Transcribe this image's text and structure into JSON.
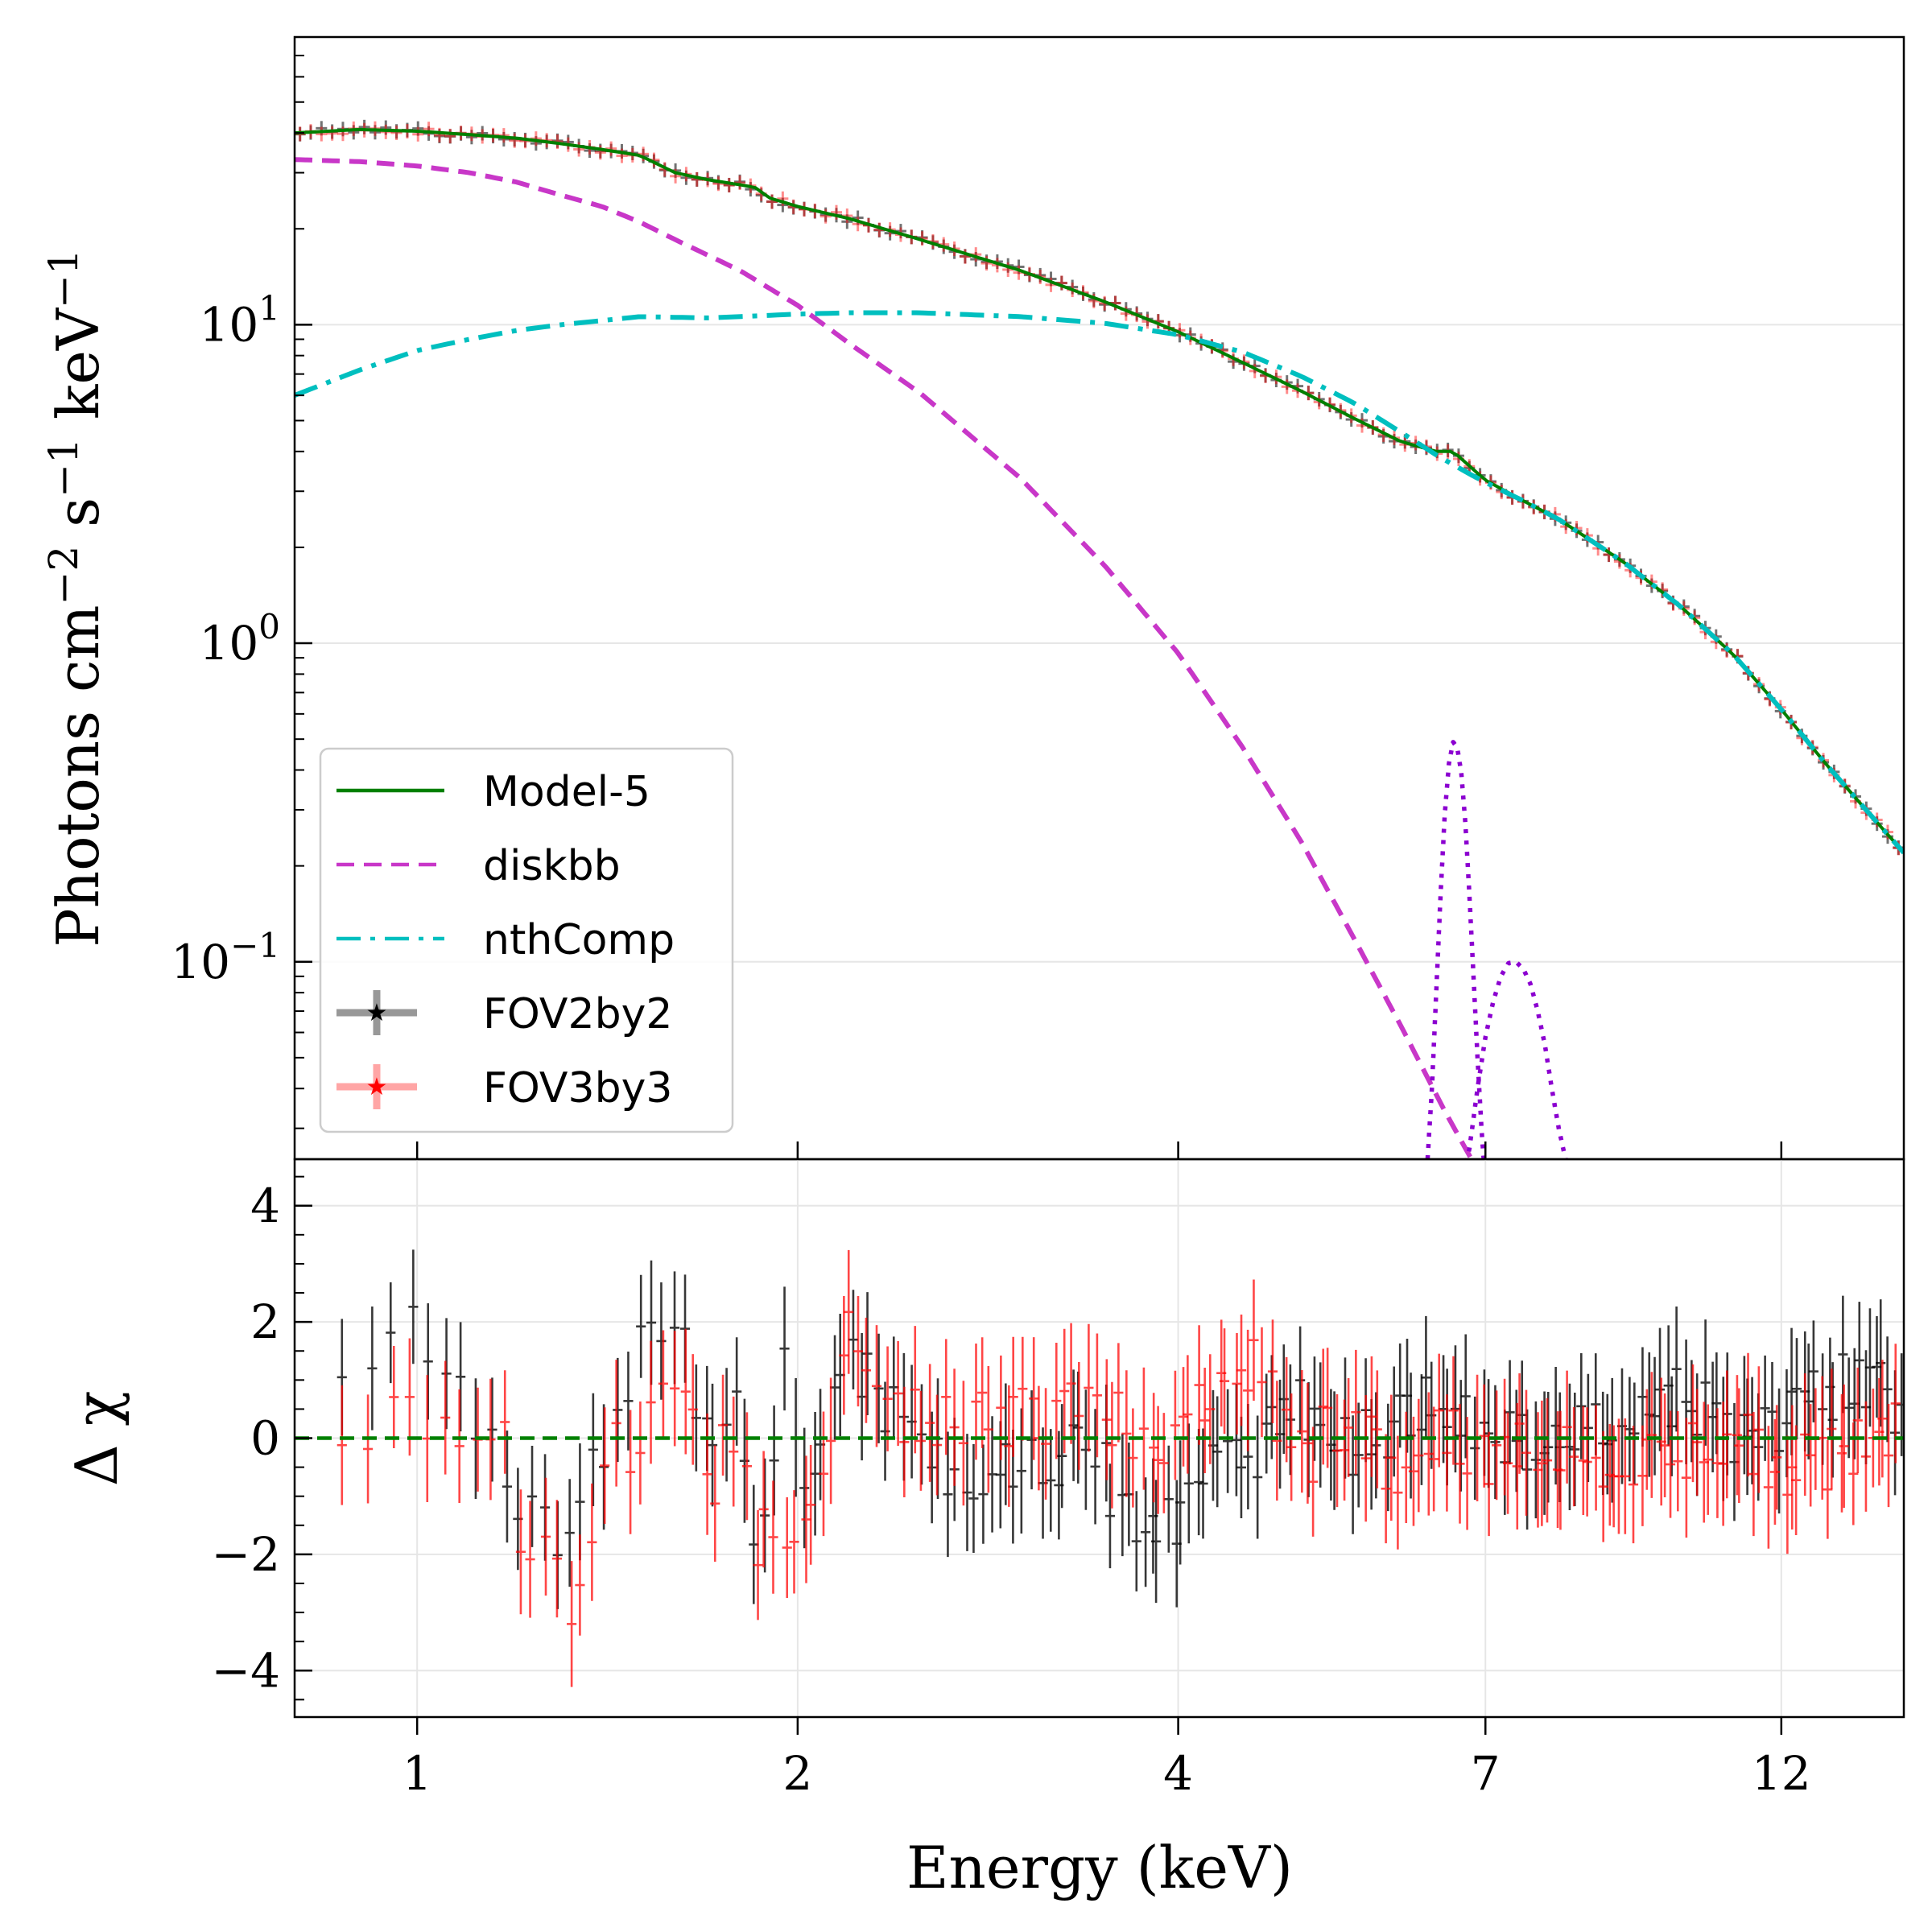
{
  "chart_data": [
    {
      "type": "line",
      "panel": "spectrum",
      "ylabel": "Photons cm^-2 s^-1 keV^-1",
      "yscale": "log",
      "xscale": "log",
      "xlim": [
        0.8,
        15
      ],
      "ylim": [
        0.024,
        80
      ],
      "yticks": [
        0.1,
        1,
        10
      ],
      "ytick_labels": [
        {
          "base": "10",
          "exp": "−1"
        },
        {
          "base": "10",
          "exp": "0"
        },
        {
          "base": "10",
          "exp": "1"
        }
      ],
      "grid": true,
      "legend_position": "lower-left",
      "legend": [
        {
          "label": "Model-5",
          "style": "solid",
          "color": "#008000"
        },
        {
          "label": "diskbb",
          "style": "dashed",
          "color": "#c837c8"
        },
        {
          "label": "nthComp",
          "style": "dashdot",
          "color": "#00bfbf"
        },
        {
          "label": "FOV2by2",
          "style": "errorbar",
          "color": "#000000"
        },
        {
          "label": "FOV3by3",
          "style": "errorbar",
          "color": "#ff0000"
        }
      ],
      "series": [
        {
          "name": "Model-5",
          "color": "#008000",
          "x": [
            0.8,
            0.9,
            1.0,
            1.1,
            1.2,
            1.3,
            1.4,
            1.5,
            1.6,
            1.7,
            1.8,
            1.85,
            1.9,
            2.0,
            2.2,
            2.5,
            3.0,
            3.5,
            4.0,
            4.5,
            5.0,
            5.5,
            6.0,
            6.4,
            6.6,
            6.8,
            7.0,
            7.5,
            8.0,
            9.0,
            10.0,
            11.0,
            12.0,
            13.0,
            14.0,
            15.0
          ],
          "y": [
            40,
            41,
            40.5,
            39.5,
            38.5,
            37,
            35.5,
            34,
            30,
            28.5,
            27.5,
            27,
            25,
            23.5,
            21.5,
            18.5,
            14.8,
            11.8,
            9.5,
            7.6,
            6.2,
            5.1,
            4.3,
            4.0,
            4.0,
            3.6,
            3.25,
            2.8,
            2.45,
            1.8,
            1.3,
            0.92,
            0.62,
            0.42,
            0.3,
            0.22
          ]
        },
        {
          "name": "diskbb",
          "color": "#c837c8",
          "x": [
            0.8,
            0.9,
            1.0,
            1.1,
            1.2,
            1.3,
            1.4,
            1.5,
            1.6,
            1.8,
            2.0,
            2.2,
            2.5,
            3.0,
            3.5,
            4.0,
            4.5,
            5.0,
            5.5,
            6.0,
            6.5,
            7.0
          ],
          "y": [
            33,
            32.5,
            31.5,
            30,
            28,
            25.5,
            23.5,
            21,
            18.5,
            14.8,
            11.5,
            8.7,
            6.1,
            3.3,
            1.75,
            0.93,
            0.47,
            0.24,
            0.12,
            0.063,
            0.034,
            0.02
          ]
        },
        {
          "name": "nthComp",
          "color": "#00bfbf",
          "x": [
            0.8,
            0.9,
            1.0,
            1.1,
            1.2,
            1.3,
            1.4,
            1.5,
            1.7,
            1.9,
            2.0,
            2.2,
            2.5,
            3.0,
            3.5,
            4.0,
            4.5,
            5.0,
            5.5,
            6.0,
            6.4,
            6.8,
            7.0,
            7.5,
            8.0,
            9.0,
            10.0,
            11.0,
            12.0,
            13.0,
            14.0,
            15.0
          ],
          "y": [
            6.0,
            7.2,
            8.3,
            9.0,
            9.6,
            10.0,
            10.3,
            10.6,
            10.5,
            10.7,
            10.8,
            10.9,
            10.9,
            10.6,
            10.1,
            9.3,
            8.2,
            6.9,
            5.7,
            4.6,
            3.9,
            3.4,
            3.2,
            2.8,
            2.45,
            1.8,
            1.3,
            0.92,
            0.62,
            0.42,
            0.3,
            0.22
          ]
        },
        {
          "name": "gaussian-1",
          "color": "#8b00d0",
          "style": "dotted",
          "x": [
            6.3,
            6.35,
            6.4,
            6.45,
            6.5,
            6.55,
            6.6,
            6.65,
            6.7,
            6.75,
            6.8,
            6.85,
            6.9,
            6.95,
            7.0
          ],
          "y": [
            0.024,
            0.04,
            0.08,
            0.16,
            0.29,
            0.42,
            0.49,
            0.47,
            0.39,
            0.27,
            0.16,
            0.09,
            0.05,
            0.03,
            0.02
          ]
        },
        {
          "name": "gaussian-2",
          "color": "#8b00d0",
          "style": "dotted",
          "x": [
            6.7,
            6.8,
            6.9,
            7.0,
            7.1,
            7.2,
            7.3,
            7.4,
            7.5,
            7.6,
            7.7,
            7.8,
            7.9,
            8.0,
            8.1
          ],
          "y": [
            0.02,
            0.026,
            0.04,
            0.058,
            0.075,
            0.09,
            0.099,
            0.1,
            0.095,
            0.085,
            0.07,
            0.055,
            0.04,
            0.03,
            0.024
          ]
        }
      ]
    },
    {
      "type": "scatter",
      "panel": "residuals",
      "xlabel": "Energy (keV)",
      "ylabel": "Δ χ",
      "xscale": "log",
      "xlim": [
        0.8,
        15
      ],
      "ylim": [
        -4.8,
        4.8
      ],
      "xticks": [
        1,
        2,
        4,
        7,
        12
      ],
      "xtick_labels": [
        "1",
        "2",
        "4",
        "7",
        "12"
      ],
      "yticks": [
        -4,
        -2,
        0,
        2,
        4
      ],
      "ytick_labels": [
        "−4",
        "−2",
        "0",
        "2",
        "4"
      ],
      "grid": true,
      "zero_line_color": "#008000",
      "series": [
        {
          "name": "FOV2by2",
          "color": "#000000",
          "seed": 7
        },
        {
          "name": "FOV3by3",
          "color": "#ff0000",
          "seed": 13
        }
      ],
      "residual_anchors": [
        {
          "x": 0.85,
          "black": 0.0,
          "red": -0.3
        },
        {
          "x": 0.95,
          "black": 2.4,
          "red": 0.7
        },
        {
          "x": 1.05,
          "black": 0.8,
          "red": 0.1
        },
        {
          "x": 1.15,
          "black": 0.3,
          "red": 0.6
        },
        {
          "x": 1.2,
          "black": -0.9,
          "red": -1.3
        },
        {
          "x": 1.27,
          "black": -1.8,
          "red": -2.2
        },
        {
          "x": 1.33,
          "black": -1.9,
          "red": -2.7
        },
        {
          "x": 1.4,
          "black": -0.3,
          "red": -0.6
        },
        {
          "x": 1.5,
          "black": 1.6,
          "red": 0.2
        },
        {
          "x": 1.6,
          "black": 1.9,
          "red": 0.8
        },
        {
          "x": 1.7,
          "black": 0.0,
          "red": -0.9
        },
        {
          "x": 1.8,
          "black": 1.0,
          "red": 0.6
        },
        {
          "x": 1.85,
          "black": -2.3,
          "red": -1.6
        },
        {
          "x": 1.95,
          "black": 1.3,
          "red": -1.5
        },
        {
          "x": 2.05,
          "black": -0.9,
          "red": -1.2
        },
        {
          "x": 2.2,
          "black": 1.2,
          "red": 1.8
        },
        {
          "x": 2.4,
          "black": 0.5,
          "red": 0.3
        },
        {
          "x": 2.7,
          "black": -0.8,
          "red": 0.2
        },
        {
          "x": 3.0,
          "black": -0.6,
          "red": 0.3
        },
        {
          "x": 3.4,
          "black": -0.2,
          "red": 0.6
        },
        {
          "x": 3.8,
          "black": -1.8,
          "red": -0.2
        },
        {
          "x": 4.2,
          "black": -0.6,
          "red": 0.4
        },
        {
          "x": 4.6,
          "black": -0.2,
          "red": 1.4
        },
        {
          "x": 5.0,
          "black": 0.6,
          "red": -0.4
        },
        {
          "x": 5.5,
          "black": -0.2,
          "red": 0.4
        },
        {
          "x": 6.0,
          "black": 0.4,
          "red": -0.8
        },
        {
          "x": 6.5,
          "black": 0.8,
          "red": 0.0
        },
        {
          "x": 7.0,
          "black": -0.2,
          "red": -0.3
        },
        {
          "x": 8.0,
          "black": 0.2,
          "red": -0.3
        },
        {
          "x": 9.0,
          "black": 0.5,
          "red": -0.3
        },
        {
          "x": 10.0,
          "black": 0.7,
          "red": -0.2
        },
        {
          "x": 11.0,
          "black": 0.1,
          "red": 0.2
        },
        {
          "x": 12.0,
          "black": 0.3,
          "red": -0.6
        },
        {
          "x": 13.0,
          "black": 0.8,
          "red": -0.4
        },
        {
          "x": 14.0,
          "black": 1.1,
          "red": -0.2
        },
        {
          "x": 15.0,
          "black": 0.5,
          "red": 0.3
        }
      ]
    }
  ]
}
